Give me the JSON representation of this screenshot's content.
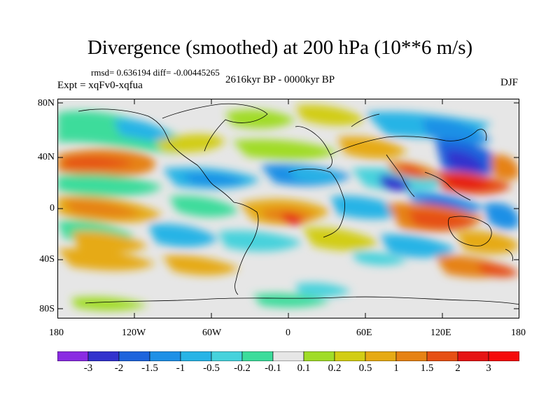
{
  "title": "Divergence (smoothed) at 200 hPa (10**6 m/s)",
  "stats": "rmsd= 0.636194 diff= -0.00445265",
  "expt": "Expt = xqFv0-xqfua",
  "period": "2616kyr BP - 0000kyr BP",
  "season": "DJF",
  "lat_labels": [
    "80N",
    "40N",
    "0",
    "40S",
    "80S"
  ],
  "lon_labels": [
    "180",
    "120W",
    "60W",
    "0",
    "60E",
    "120E",
    "180"
  ],
  "colorbar": {
    "labels": [
      "-3",
      "-2",
      "-1.5",
      "-1",
      "-0.5",
      "-0.2",
      "-0.1",
      "0.1",
      "0.2",
      "0.5",
      "1",
      "1.5",
      "2",
      "3"
    ],
    "colors": [
      "#8a2be2",
      "#3232cd",
      "#1e64dc",
      "#1e90e6",
      "#28b4e6",
      "#46d2dc",
      "#3cdc9b",
      "#e6e6e6",
      "#a0dc28",
      "#d2cd14",
      "#e6aa14",
      "#e68214",
      "#e65014",
      "#e61414",
      "#f50a0a"
    ]
  },
  "colors": {
    "missing": "#e6e6e6",
    "coast": "#000000"
  }
}
